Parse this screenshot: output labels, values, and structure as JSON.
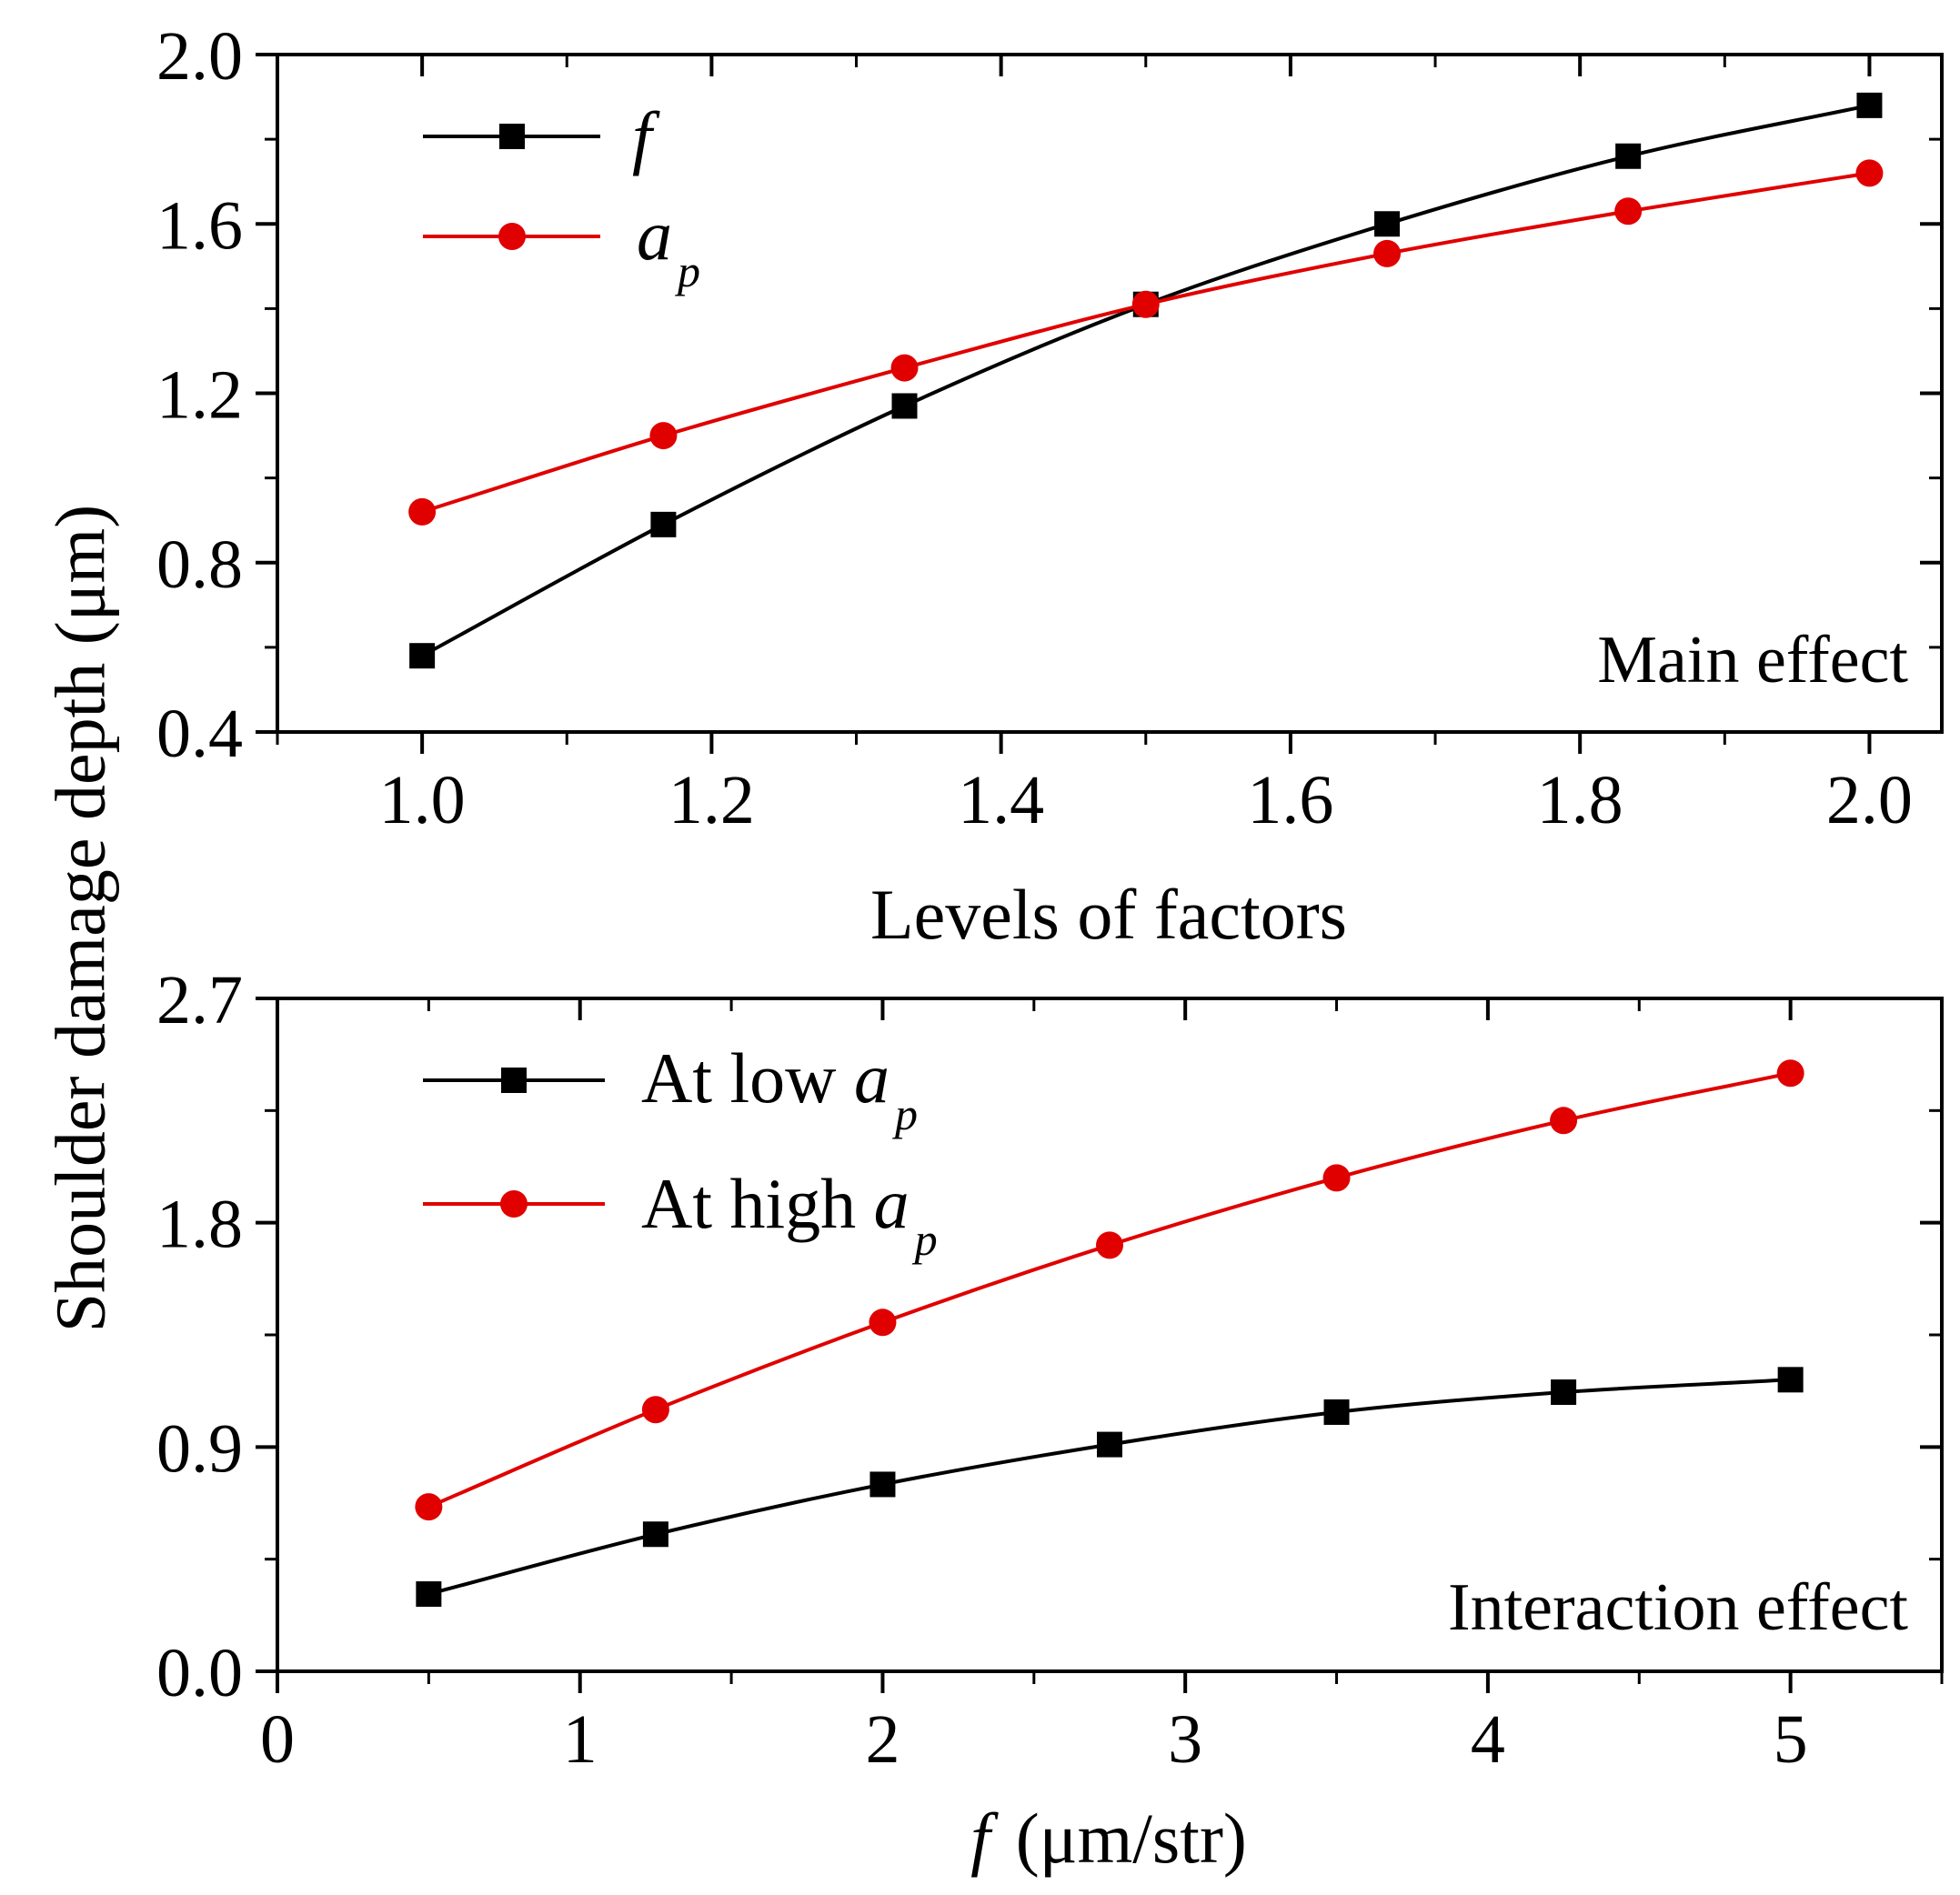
{
  "chart_data": [
    {
      "type": "line",
      "panel": "top",
      "annotation": "Main effect",
      "xlabel": "Levels of factors",
      "ylabel": "Shoulder damage depth (μm)",
      "xlim": [
        0.9,
        2.05
      ],
      "ylim": [
        0.4,
        2.0
      ],
      "x_ticks": [
        1.0,
        1.2,
        1.4,
        1.6,
        1.8,
        2.0
      ],
      "x_tick_labels": [
        "1.0",
        "1.2",
        "1.4",
        "1.6",
        "1.8",
        "2.0"
      ],
      "y_ticks": [
        0.4,
        0.8,
        1.2,
        1.6,
        2.0
      ],
      "y_tick_labels": [
        "0.4",
        "0.8",
        "1.2",
        "1.6",
        "2.0"
      ],
      "x_minor_step": 0.1,
      "y_minor_step": 0.2,
      "legend_position": "top-left",
      "series": [
        {
          "name": "f",
          "legend_main": "f",
          "legend_sub": "",
          "color": "#000000",
          "marker": "square",
          "x": [
            1.0,
            1.1667,
            1.3333,
            1.5,
            1.6667,
            1.8333,
            2.0
          ],
          "values": [
            0.58,
            0.89,
            1.17,
            1.41,
            1.6,
            1.76,
            1.88
          ]
        },
        {
          "name": "a_p",
          "legend_main": "a",
          "legend_sub": "p",
          "color": "#e00000",
          "marker": "circle",
          "x": [
            1.0,
            1.1667,
            1.3333,
            1.5,
            1.6667,
            1.8333,
            2.0
          ],
          "values": [
            0.92,
            1.1,
            1.26,
            1.41,
            1.53,
            1.63,
            1.72
          ]
        }
      ]
    },
    {
      "type": "line",
      "panel": "bottom",
      "annotation": "Interaction effect",
      "xlabel_italic": "f",
      "xlabel_rest": "(μm/str)",
      "ylabel": "Shoulder damage depth (μm)",
      "xlim": [
        0,
        5.5
      ],
      "ylim": [
        0.0,
        2.7
      ],
      "x_ticks": [
        0,
        1,
        2,
        3,
        4,
        5
      ],
      "x_tick_labels": [
        "0",
        "1",
        "2",
        "3",
        "4",
        "5"
      ],
      "y_ticks": [
        0.0,
        0.9,
        1.8,
        2.7
      ],
      "y_tick_labels": [
        "0.0",
        "0.9",
        "1.8",
        "2.7"
      ],
      "x_minor_step": 0.5,
      "y_minor_step": 0.45,
      "legend_position": "top-left",
      "series": [
        {
          "name": "At low a_p",
          "legend_main": "At low ",
          "legend_italic": "a",
          "legend_sub": "p",
          "color": "#000000",
          "marker": "square",
          "x": [
            0.5,
            1.25,
            2.0,
            2.75,
            3.5,
            4.25,
            5.0
          ],
          "values": [
            0.31,
            0.55,
            0.75,
            0.91,
            1.04,
            1.12,
            1.17
          ]
        },
        {
          "name": "At high a_p",
          "legend_main": "At high ",
          "legend_italic": "a",
          "legend_sub": "p",
          "color": "#e00000",
          "marker": "circle",
          "x": [
            0.5,
            1.25,
            2.0,
            2.75,
            3.5,
            4.25,
            5.0
          ],
          "values": [
            0.66,
            1.05,
            1.4,
            1.71,
            1.98,
            2.21,
            2.4
          ]
        }
      ]
    }
  ]
}
